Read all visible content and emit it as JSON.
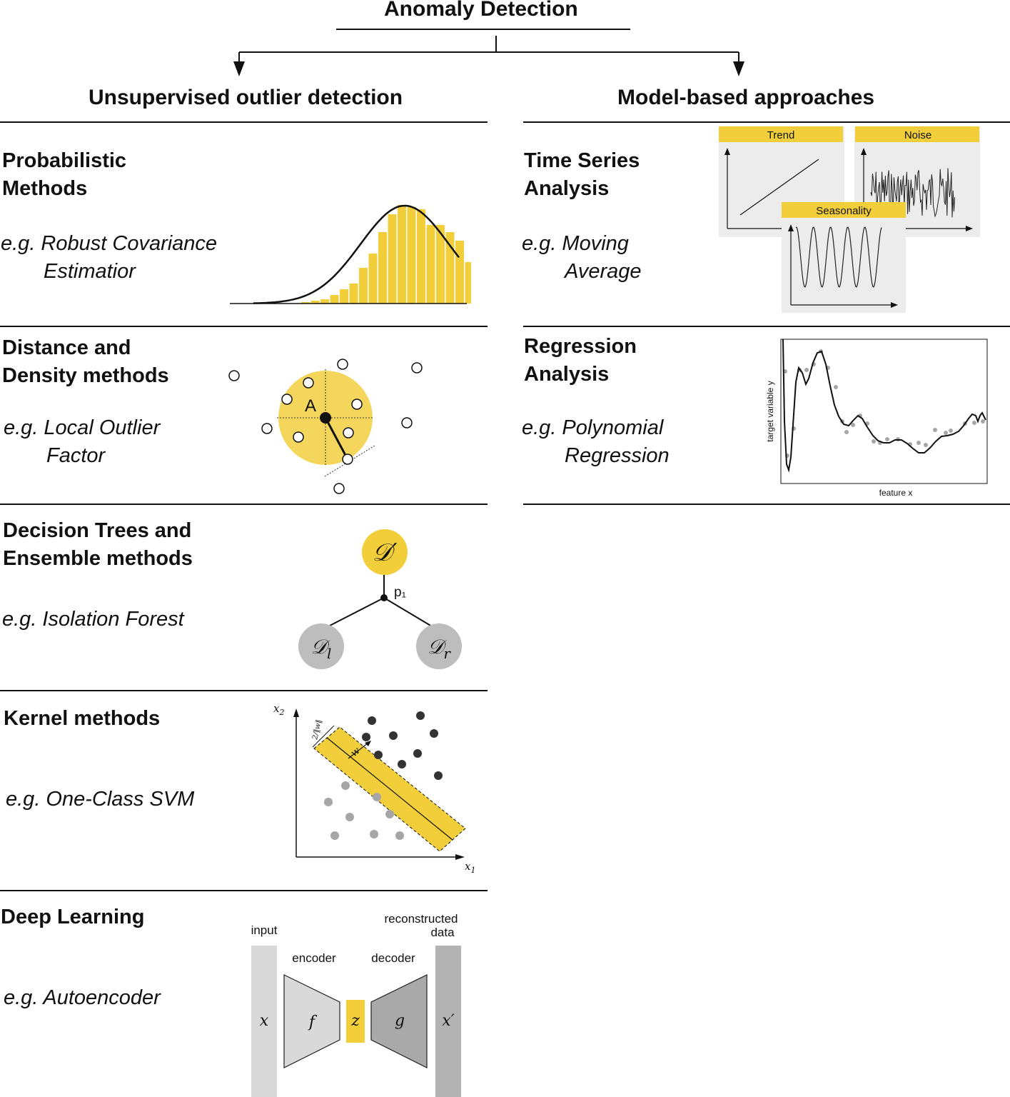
{
  "title": "Anomaly Detection",
  "columns": {
    "left": {
      "title": "Unsupervised outlier detection"
    },
    "right": {
      "title": "Model-based approaches"
    }
  },
  "left_sections": [
    {
      "title_line1": "Probabilistic",
      "title_line2": "Methods",
      "example_line1": "e.g. Robust Covariance",
      "example_line2": "Estimatior"
    },
    {
      "title_line1": "Distance and",
      "title_line2": "Density methods",
      "example_line1": "e.g. Local Outlier",
      "example_line2": "Factor"
    },
    {
      "title_line1": "Decision Trees and",
      "title_line2": "Ensemble methods",
      "example_line1": "e.g. Isolation Forest",
      "example_line2": ""
    },
    {
      "title_line1": "Kernel methods",
      "title_line2": "",
      "example_line1": "e.g. One-Class SVM",
      "example_line2": ""
    },
    {
      "title_line1": "Deep Learning",
      "title_line2": "",
      "example_line1": "e.g. Autoencoder",
      "example_line2": ""
    }
  ],
  "right_sections": [
    {
      "title_line1": "Time Series",
      "title_line2": "Analysis",
      "example_line1": "e.g. Moving",
      "example_line2": "Average"
    },
    {
      "title_line1": "Regression",
      "title_line2": "Analysis",
      "example_line1": "e.g. Polynomial",
      "example_line2": "Regression"
    }
  ],
  "figures": {
    "density_point_label": "A",
    "tree": {
      "root": "𝒟′",
      "split": "p₁",
      "left_base": "𝒟",
      "left_sub": "l",
      "right_base": "𝒟",
      "right_sub": "r"
    },
    "svm": {
      "x_axis": "x",
      "x_axis_sub": "1",
      "y_axis": "x",
      "y_axis_sub": "2",
      "weight": "w",
      "margin": "2/‖w‖"
    },
    "timeseries": {
      "trend": "Trend",
      "noise": "Noise",
      "seasonality": "Seasonality"
    },
    "regression": {
      "xlabel": "feature x",
      "ylabel": "target variable y"
    },
    "autoencoder": {
      "input_label": "input",
      "encoder_label": "encoder",
      "decoder_label": "decoder",
      "output_label_1": "reconstructed",
      "output_label_2": "data",
      "x": "x",
      "f": "f",
      "z": "z",
      "g": "g",
      "x_prime": "x′"
    }
  },
  "colors": {
    "accent": "#f2cf3a",
    "accent_light": "#f5d65c",
    "panel_grey": "#ececec",
    "node_grey": "#bdbdbd",
    "dark": "#111111",
    "point_dark": "#333333",
    "point_light": "#a6a6a6"
  }
}
